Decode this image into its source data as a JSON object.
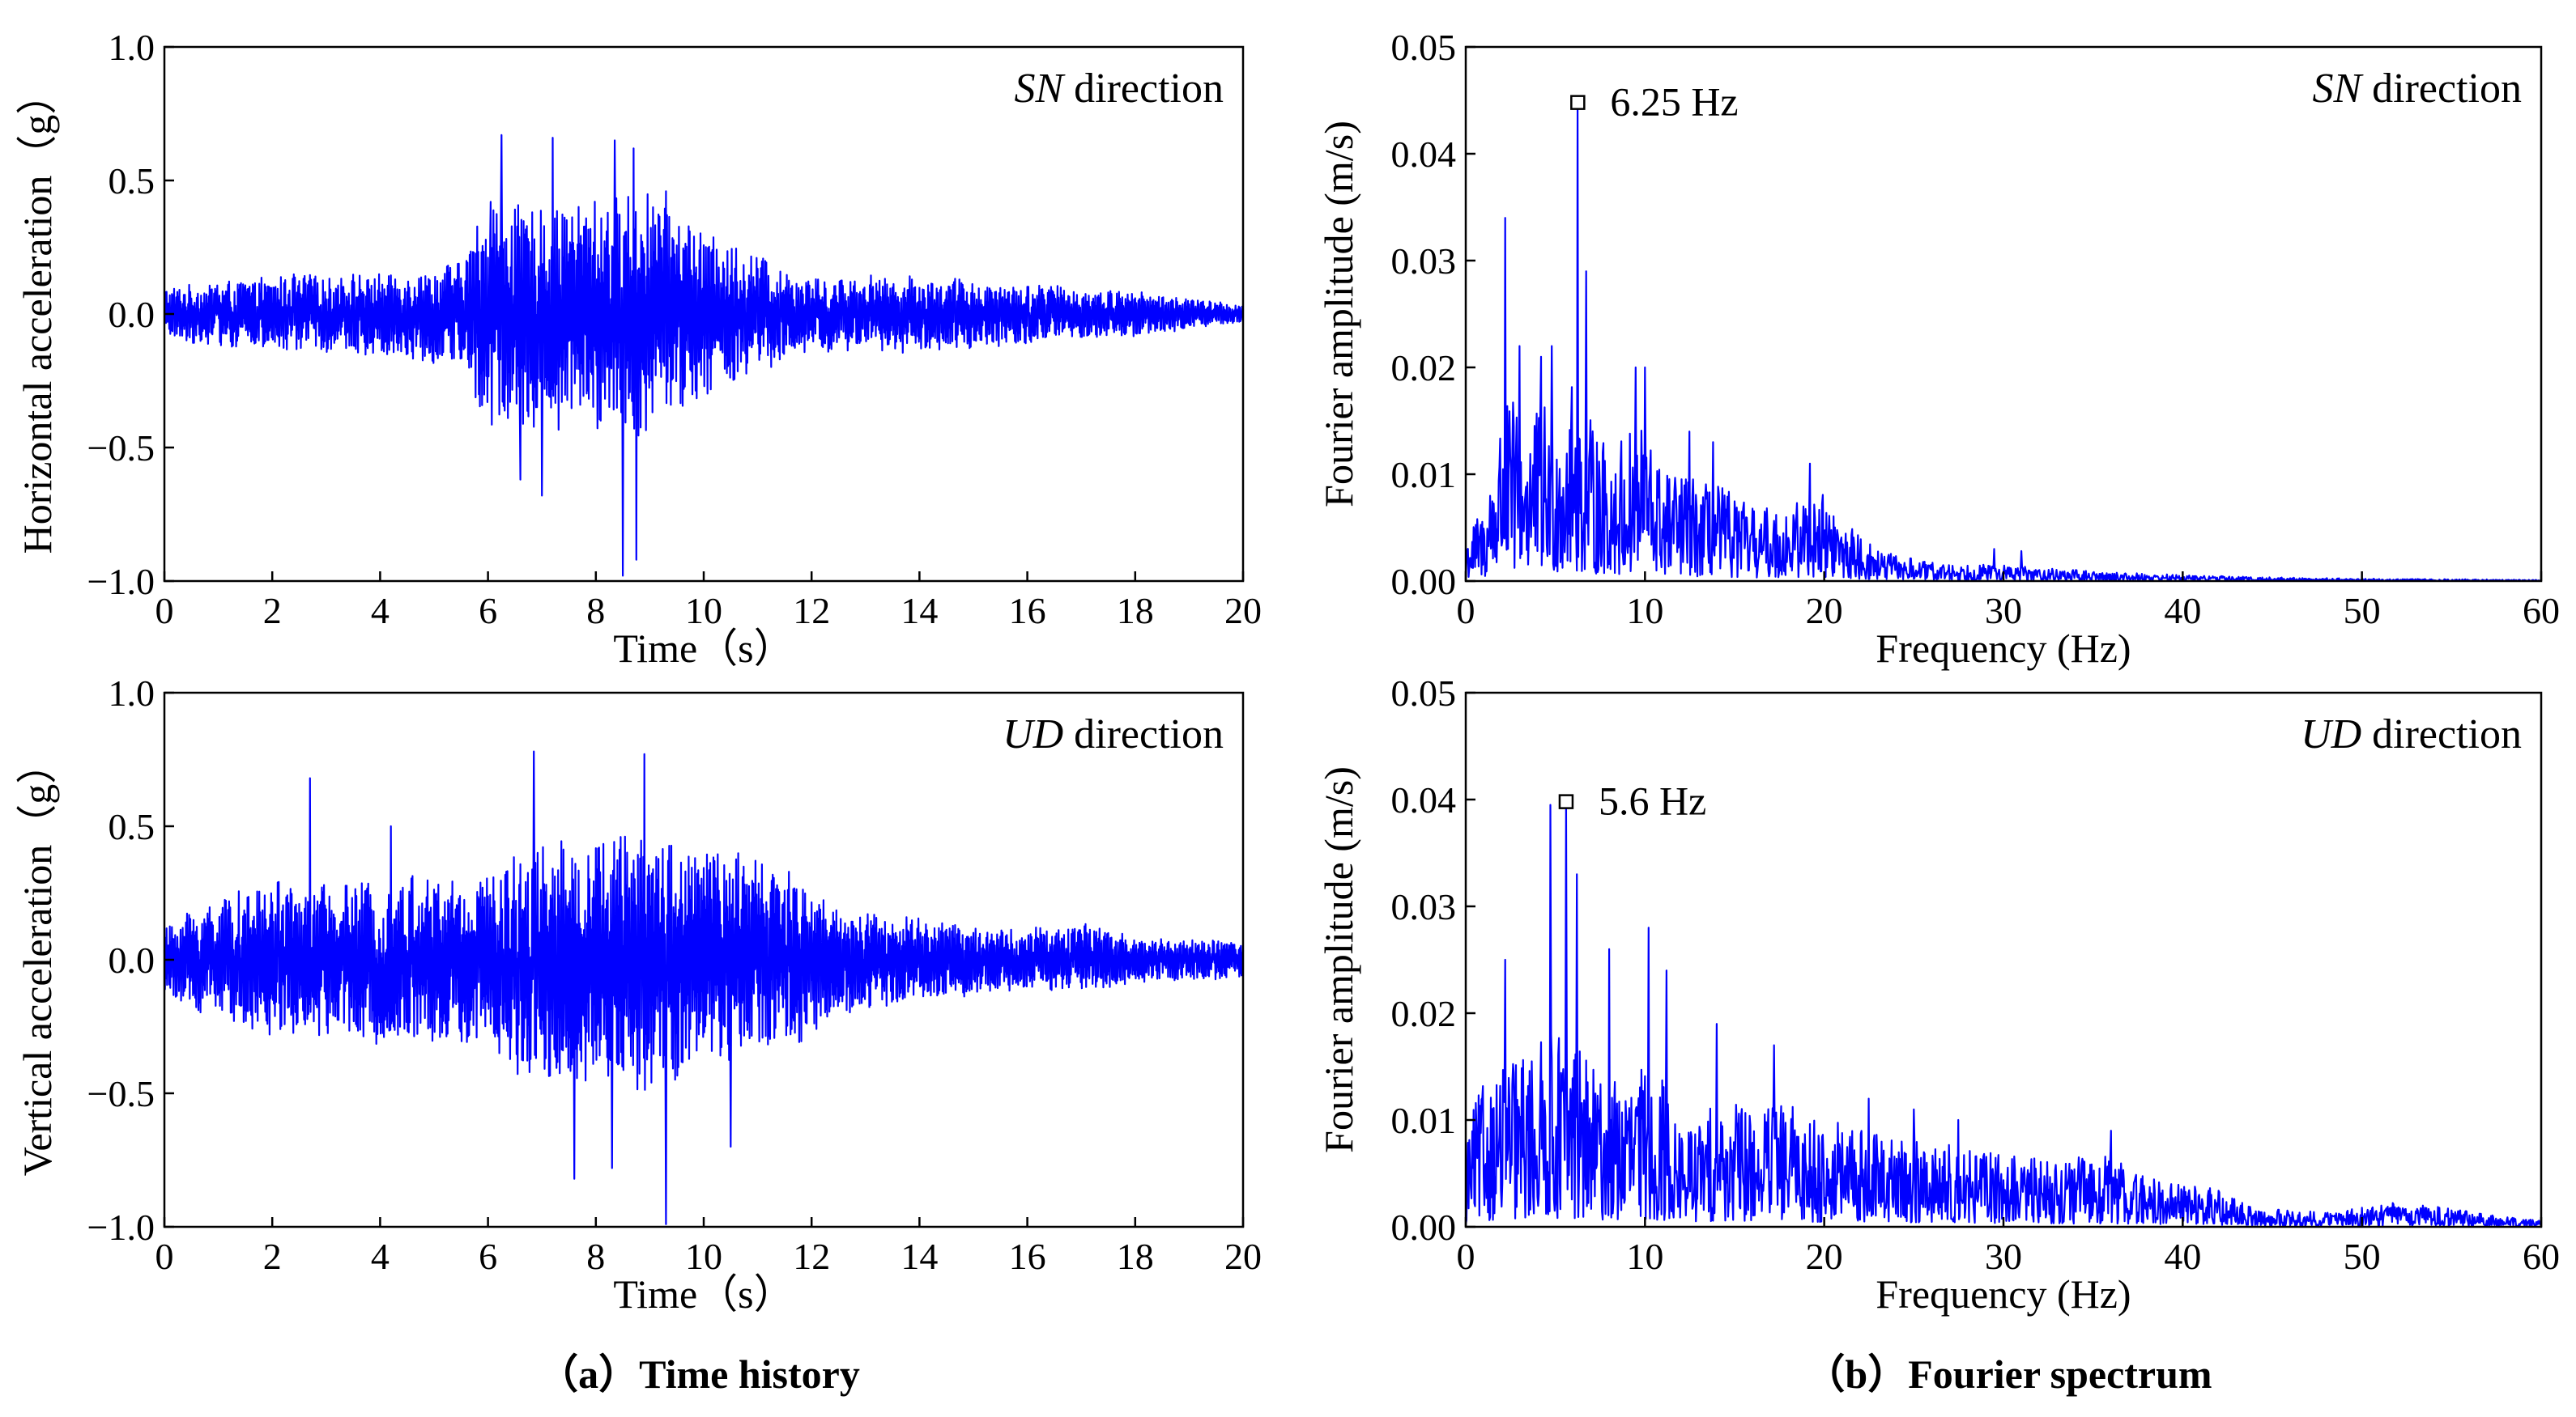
{
  "figure": {
    "caption_a": "（a）Time history",
    "caption_b": "（b）Fourier spectrum"
  },
  "chart_data": [
    {
      "id": "sn_time",
      "type": "line",
      "panel": "top-left",
      "direction_italic": "SN",
      "direction_text": " direction",
      "xlabel": "Time（s）",
      "ylabel": "Horizontal acceleration（g）",
      "xlim": [
        0,
        20
      ],
      "ylim": [
        -1.0,
        1.0
      ],
      "xticks": [
        0,
        2,
        4,
        6,
        8,
        10,
        12,
        14,
        16,
        18,
        20
      ],
      "yticks": [
        -1.0,
        -0.5,
        0.0,
        0.5,
        1.0
      ],
      "ytick_labels": [
        "−1.0",
        "−0.5",
        "0.0",
        "0.5",
        "1.0"
      ],
      "line_color": "#0000ff",
      "envelope": [
        [
          0,
          0.14
        ],
        [
          2,
          0.2
        ],
        [
          4,
          0.22
        ],
        [
          5.5,
          0.28
        ],
        [
          6,
          0.62
        ],
        [
          7,
          0.6
        ],
        [
          8,
          0.62
        ],
        [
          9,
          0.68
        ],
        [
          10,
          0.45
        ],
        [
          11,
          0.32
        ],
        [
          12,
          0.2
        ],
        [
          14,
          0.2
        ],
        [
          16,
          0.16
        ],
        [
          18,
          0.12
        ],
        [
          20,
          0.05
        ]
      ],
      "peaks": [
        [
          6.25,
          0.67
        ],
        [
          6.6,
          -0.62
        ],
        [
          7.2,
          0.66
        ],
        [
          8.35,
          0.65
        ],
        [
          8.5,
          -0.98
        ],
        [
          8.75,
          -0.92
        ],
        [
          8.7,
          0.62
        ],
        [
          7.0,
          -0.68
        ],
        [
          6.05,
          0.42
        ]
      ]
    },
    {
      "id": "ud_time",
      "type": "line",
      "panel": "bottom-left",
      "direction_italic": "UD",
      "direction_text": " direction",
      "xlabel": "Time（s）",
      "ylabel": "Vertical acceleration（g）",
      "xlim": [
        0,
        20
      ],
      "ylim": [
        -1.0,
        1.0
      ],
      "xticks": [
        0,
        2,
        4,
        6,
        8,
        10,
        12,
        14,
        16,
        18,
        20
      ],
      "yticks": [
        -1.0,
        -0.5,
        0.0,
        0.5,
        1.0
      ],
      "ytick_labels": [
        "−1.0",
        "−0.5",
        "0.0",
        "0.5",
        "1.0"
      ],
      "line_color": "#0000ff",
      "envelope": [
        [
          0,
          0.18
        ],
        [
          0.5,
          0.28
        ],
        [
          2,
          0.42
        ],
        [
          3,
          0.4
        ],
        [
          4,
          0.44
        ],
        [
          6,
          0.46
        ],
        [
          6.8,
          0.65
        ],
        [
          8,
          0.68
        ],
        [
          9,
          0.72
        ],
        [
          10,
          0.6
        ],
        [
          11.5,
          0.5
        ],
        [
          12.5,
          0.3
        ],
        [
          14,
          0.22
        ],
        [
          16,
          0.16
        ],
        [
          17,
          0.2
        ],
        [
          18,
          0.12
        ],
        [
          20,
          0.1
        ]
      ],
      "peaks": [
        [
          2.7,
          0.68
        ],
        [
          6.85,
          0.78
        ],
        [
          8.9,
          0.77
        ],
        [
          9.3,
          -0.99
        ],
        [
          7.6,
          -0.82
        ],
        [
          8.3,
          -0.78
        ],
        [
          4.2,
          0.5
        ],
        [
          10.5,
          -0.7
        ]
      ]
    },
    {
      "id": "sn_spectrum",
      "type": "line",
      "panel": "top-right",
      "direction_italic": "SN",
      "direction_text": " direction",
      "xlabel": "Frequency (Hz)",
      "ylabel": "Fourier amplitude (m/s)",
      "xlim": [
        0,
        60
      ],
      "ylim": [
        0,
        0.05
      ],
      "xticks": [
        0,
        10,
        20,
        30,
        40,
        50,
        60
      ],
      "yticks": [
        0,
        0.01,
        0.02,
        0.03,
        0.04,
        0.05
      ],
      "ytick_labels": [
        "0.00",
        "0.01",
        "0.02",
        "0.03",
        "0.04",
        "0.05"
      ],
      "line_color": "#0000ff",
      "peak_label": "6.25 Hz",
      "peak": [
        6.25,
        0.0448
      ],
      "envelope": [
        [
          0,
          0.004
        ],
        [
          1,
          0.006
        ],
        [
          2,
          0.014
        ],
        [
          3,
          0.015
        ],
        [
          4,
          0.014
        ],
        [
          5,
          0.015
        ],
        [
          6,
          0.016
        ],
        [
          7,
          0.013
        ],
        [
          8,
          0.011
        ],
        [
          9,
          0.012
        ],
        [
          10,
          0.013
        ],
        [
          11,
          0.009
        ],
        [
          12,
          0.009
        ],
        [
          13,
          0.008
        ],
        [
          14,
          0.008
        ],
        [
          16,
          0.006
        ],
        [
          18,
          0.006
        ],
        [
          19.5,
          0.008
        ],
        [
          21,
          0.005
        ],
        [
          23,
          0.0025
        ],
        [
          26,
          0.0015
        ],
        [
          30,
          0.0013
        ],
        [
          35,
          0.0008
        ],
        [
          40,
          0.0005
        ],
        [
          45,
          0.0003
        ],
        [
          50,
          0.0002
        ],
        [
          60,
          0.0001
        ]
      ],
      "spikes": [
        [
          2.2,
          0.034
        ],
        [
          3.0,
          0.022
        ],
        [
          4.2,
          0.021
        ],
        [
          4.8,
          0.022
        ],
        [
          6.7,
          0.029
        ],
        [
          9.5,
          0.02
        ],
        [
          10.0,
          0.02
        ],
        [
          12.5,
          0.014
        ],
        [
          13.8,
          0.013
        ],
        [
          19.2,
          0.011
        ],
        [
          29.5,
          0.003
        ],
        [
          31.0,
          0.0028
        ]
      ]
    },
    {
      "id": "ud_spectrum",
      "type": "line",
      "panel": "bottom-right",
      "direction_italic": "UD",
      "direction_text": " direction",
      "xlabel": "Frequency (Hz)",
      "ylabel": "Fourier amplitude (m/s)",
      "xlim": [
        0,
        60
      ],
      "ylim": [
        0,
        0.05
      ],
      "xticks": [
        0,
        10,
        20,
        30,
        40,
        50,
        60
      ],
      "yticks": [
        0,
        0.01,
        0.02,
        0.03,
        0.04,
        0.05
      ],
      "ytick_labels": [
        "0.00",
        "0.01",
        "0.02",
        "0.03",
        "0.04",
        "0.05"
      ],
      "line_color": "#0000ff",
      "peak_label": "5.6 Hz",
      "peak": [
        5.6,
        0.0398
      ],
      "envelope": [
        [
          0,
          0.008
        ],
        [
          1,
          0.012
        ],
        [
          2,
          0.013
        ],
        [
          3,
          0.014
        ],
        [
          4,
          0.015
        ],
        [
          5,
          0.016
        ],
        [
          6,
          0.016
        ],
        [
          7,
          0.013
        ],
        [
          8,
          0.012
        ],
        [
          9,
          0.012
        ],
        [
          10,
          0.013
        ],
        [
          11,
          0.012
        ],
        [
          12,
          0.008
        ],
        [
          14,
          0.01
        ],
        [
          16,
          0.01
        ],
        [
          18,
          0.01
        ],
        [
          20,
          0.009
        ],
        [
          22,
          0.008
        ],
        [
          25,
          0.007
        ],
        [
          28,
          0.0065
        ],
        [
          30,
          0.006
        ],
        [
          33,
          0.0055
        ],
        [
          36,
          0.006
        ],
        [
          38,
          0.004
        ],
        [
          40,
          0.004
        ],
        [
          42,
          0.003
        ],
        [
          44,
          0.0015
        ],
        [
          48,
          0.0012
        ],
        [
          52,
          0.002
        ],
        [
          55,
          0.0015
        ],
        [
          58,
          0.0008
        ],
        [
          60,
          0.0005
        ]
      ],
      "spikes": [
        [
          4.7,
          0.0395
        ],
        [
          6.2,
          0.033
        ],
        [
          2.2,
          0.025
        ],
        [
          10.2,
          0.028
        ],
        [
          8.0,
          0.026
        ],
        [
          11.2,
          0.024
        ],
        [
          14.0,
          0.019
        ],
        [
          17.2,
          0.017
        ],
        [
          22.5,
          0.012
        ],
        [
          25.0,
          0.011
        ],
        [
          27.5,
          0.01
        ],
        [
          36.0,
          0.009
        ]
      ]
    }
  ]
}
